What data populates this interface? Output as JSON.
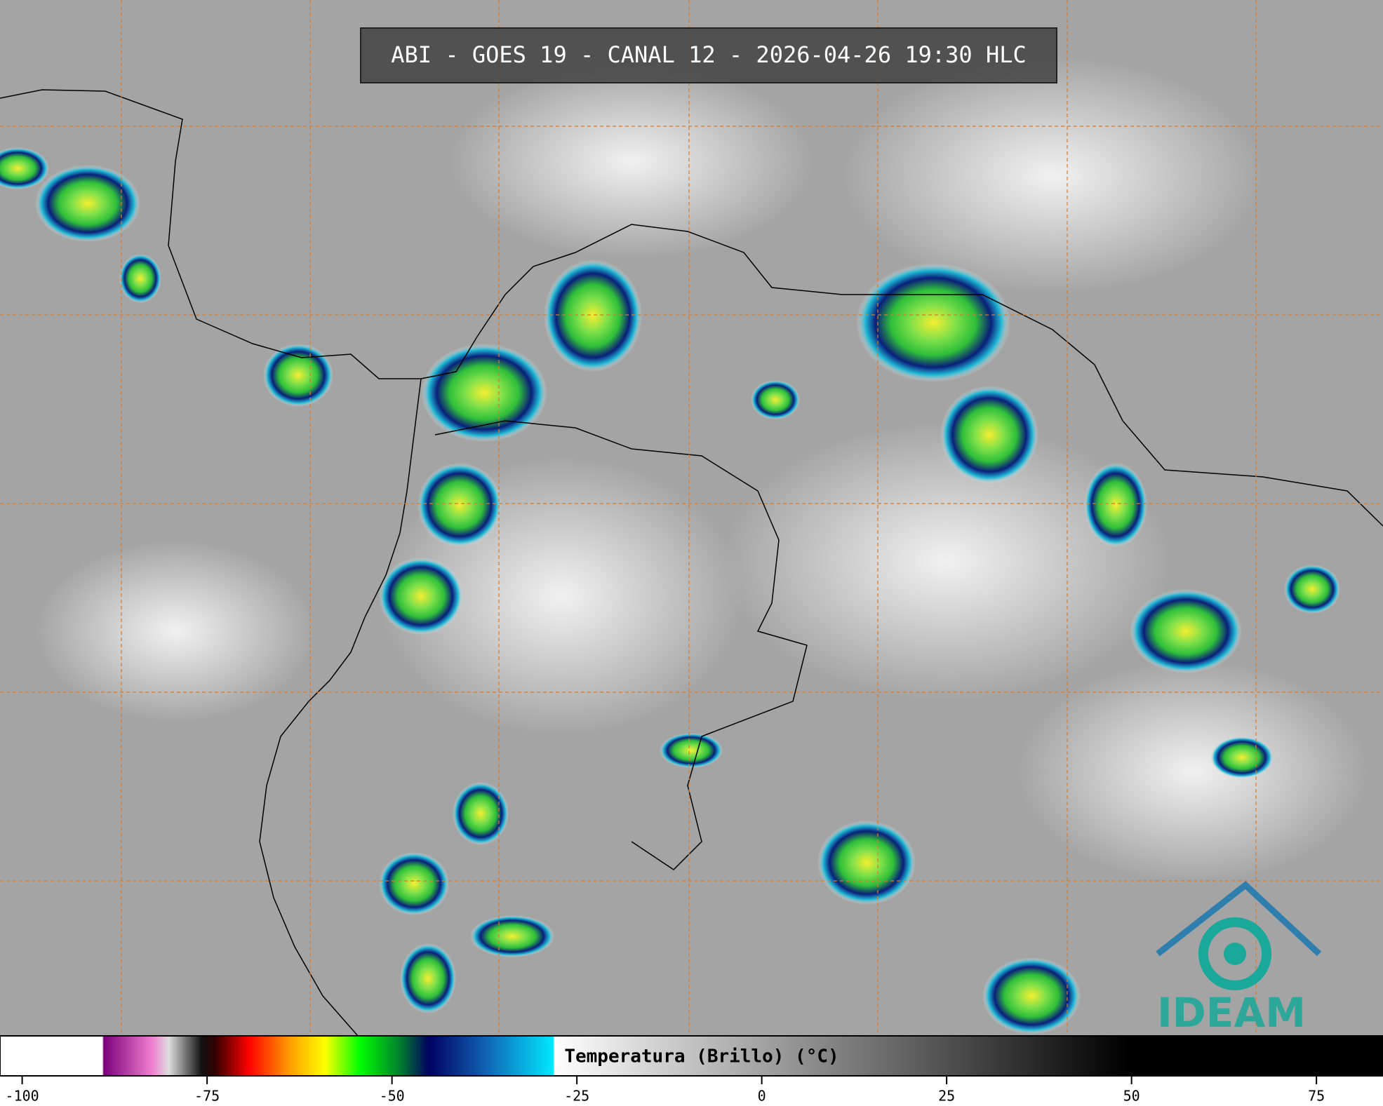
{
  "title": "ABI - GOES 19 - CANAL 12 - 2026-04-26 19:30 HLC",
  "logo": "IDEAM",
  "colorbar": {
    "label": "Temperatura (Brillo) (°C)",
    "range": [
      -103,
      84
    ],
    "ticks": [
      -100,
      -75,
      -50,
      -25,
      0,
      25,
      50,
      75
    ]
  }
}
